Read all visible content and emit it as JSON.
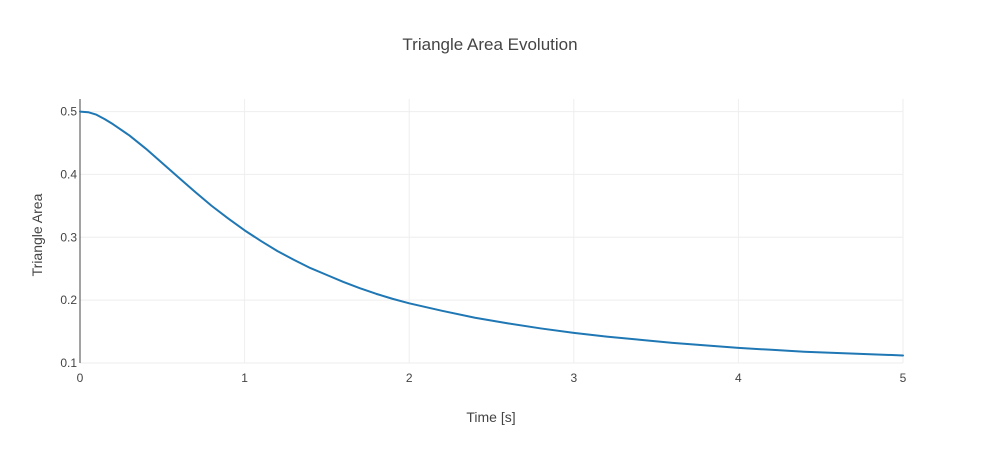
{
  "chart_data": {
    "type": "line",
    "title": "Triangle Area Evolution",
    "xlabel": "Time [s]",
    "ylabel": "Triangle Area",
    "xlim": [
      0,
      5
    ],
    "ylim": [
      0.1,
      0.52
    ],
    "x_ticks": [
      0,
      1,
      2,
      3,
      4,
      5
    ],
    "x_tick_labels": [
      "0",
      "1",
      "2",
      "3",
      "4",
      "5"
    ],
    "y_ticks": [
      0.1,
      0.2,
      0.3,
      0.4,
      0.5
    ],
    "y_tick_labels": [
      "0.1",
      "0.2",
      "0.3",
      "0.4",
      "0.5"
    ],
    "grid": true,
    "legend": "none",
    "series": [
      {
        "color": "#1f77b4",
        "x": [
          0,
          0.05,
          0.1,
          0.15,
          0.2,
          0.3,
          0.4,
          0.5,
          0.6,
          0.7,
          0.8,
          0.9,
          1.0,
          1.1,
          1.2,
          1.3,
          1.4,
          1.5,
          1.6,
          1.7,
          1.8,
          1.9,
          2.0,
          2.2,
          2.4,
          2.6,
          2.8,
          3.0,
          3.2,
          3.4,
          3.6,
          3.8,
          4.0,
          4.2,
          4.4,
          4.6,
          4.8,
          5.0
        ],
        "y": [
          0.5,
          0.499,
          0.495,
          0.488,
          0.48,
          0.462,
          0.441,
          0.418,
          0.395,
          0.372,
          0.35,
          0.33,
          0.311,
          0.294,
          0.278,
          0.264,
          0.251,
          0.24,
          0.229,
          0.219,
          0.21,
          0.202,
          0.195,
          0.183,
          0.172,
          0.163,
          0.155,
          0.148,
          0.142,
          0.137,
          0.132,
          0.128,
          0.124,
          0.121,
          0.118,
          0.116,
          0.114,
          0.112
        ]
      }
    ]
  }
}
